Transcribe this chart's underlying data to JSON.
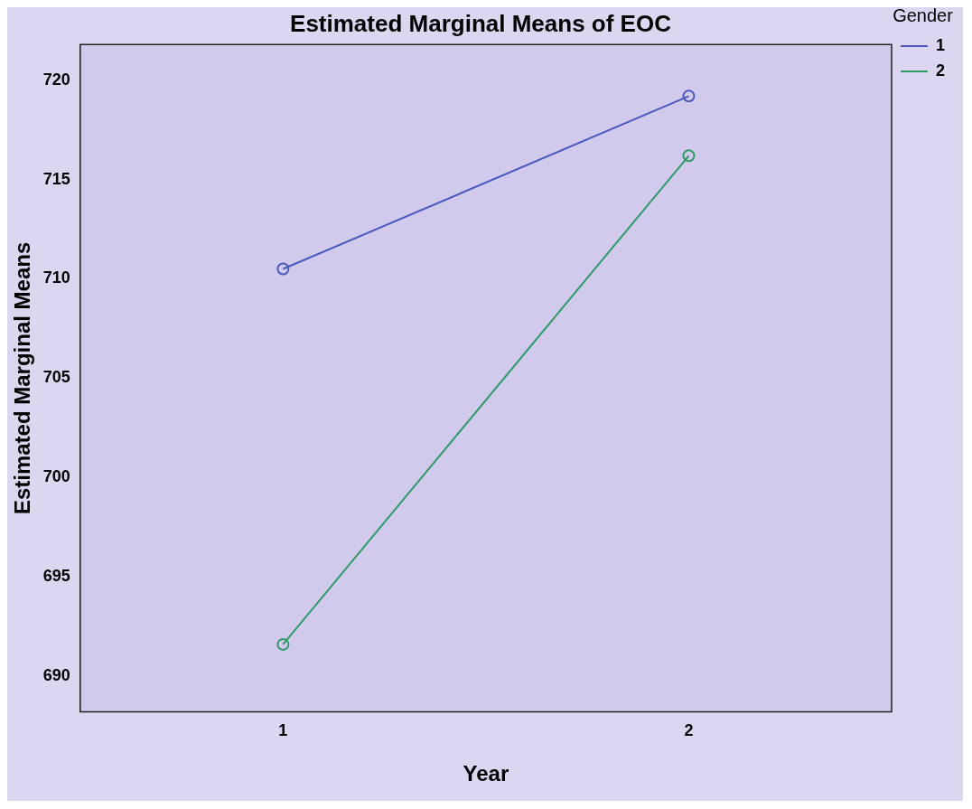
{
  "chart_data": {
    "type": "line",
    "title": "Estimated Marginal Means of EOC",
    "xlabel": "Year",
    "ylabel": "Estimated Marginal Means",
    "legend_title": "Gender",
    "categories": [
      "1",
      "2"
    ],
    "series": [
      {
        "name": "1",
        "color": "#4a58c0",
        "values": [
          710.5,
          719.2
        ]
      },
      {
        "name": "2",
        "color": "#2e9a68",
        "values": [
          691.6,
          716.2
        ]
      }
    ],
    "ylim": [
      688.2,
      721.8
    ],
    "yticks": [
      690,
      695,
      700,
      705,
      710,
      715,
      720
    ],
    "grid": false,
    "legend": "top right",
    "marker": "circle",
    "line_style": "solid"
  }
}
